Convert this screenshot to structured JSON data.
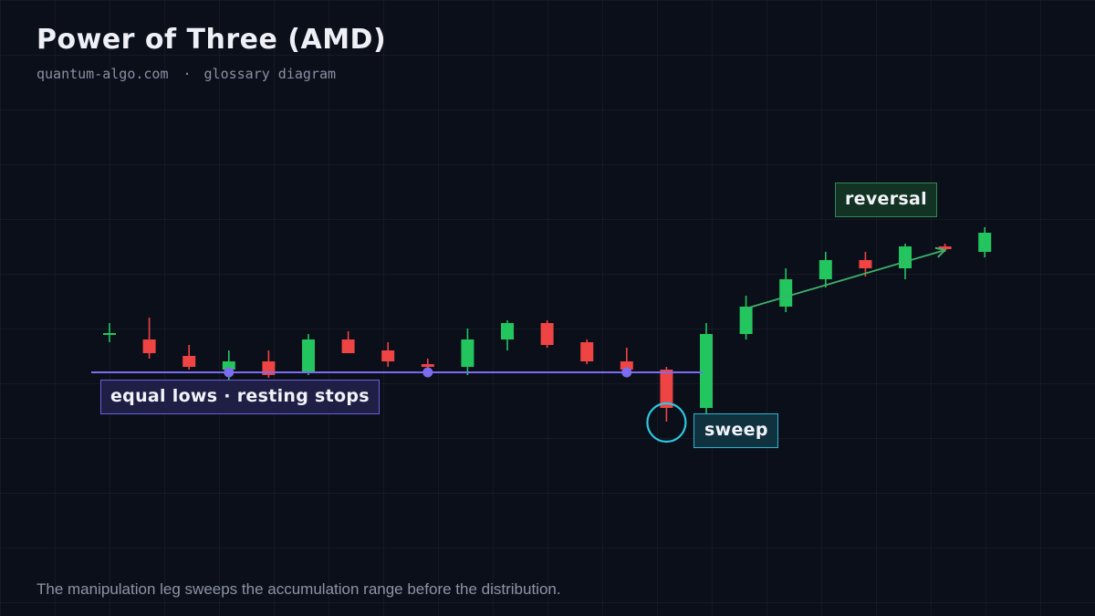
{
  "header": {
    "title": "Power of Three (AMD)",
    "site": "quantum-algo.com",
    "separator": "·",
    "tag": "glossary diagram"
  },
  "annotations": {
    "equal_lows": "equal lows · resting stops",
    "sweep": "sweep",
    "reversal": "reversal"
  },
  "caption": "The manipulation leg sweeps the accumulation range before the distribution.",
  "colors": {
    "background": "#0b0f1a",
    "bull": "#22c55e",
    "bear": "#ef4444",
    "equal_lows_line": "#7c6cf0",
    "sweep_ring": "#2cc8e0",
    "reversal_arrow": "#3fb26a"
  },
  "chart_data": {
    "type": "candlestick",
    "candles": [
      {
        "open": 79.0,
        "high": 81.0,
        "low": 77.5,
        "close": 79.0
      },
      {
        "open": 78.0,
        "high": 82.0,
        "low": 74.5,
        "close": 75.5
      },
      {
        "open": 75.0,
        "high": 77.0,
        "low": 72.5,
        "close": 73.0
      },
      {
        "open": 72.5,
        "high": 76.0,
        "low": 70.5,
        "close": 74.0
      },
      {
        "open": 74.0,
        "high": 76.0,
        "low": 71.0,
        "close": 71.5
      },
      {
        "open": 72.0,
        "high": 79.0,
        "low": 71.5,
        "close": 78.0
      },
      {
        "open": 78.0,
        "high": 79.5,
        "low": 75.5,
        "close": 75.5
      },
      {
        "open": 76.0,
        "high": 77.5,
        "low": 73.0,
        "close": 74.0
      },
      {
        "open": 73.5,
        "high": 74.5,
        "low": 72.5,
        "close": 73.0
      },
      {
        "open": 73.0,
        "high": 80.0,
        "low": 71.5,
        "close": 78.0
      },
      {
        "open": 78.0,
        "high": 81.5,
        "low": 76.0,
        "close": 81.0
      },
      {
        "open": 81.0,
        "high": 81.5,
        "low": 76.5,
        "close": 77.0
      },
      {
        "open": 77.5,
        "high": 78.0,
        "low": 73.5,
        "close": 74.0
      },
      {
        "open": 74.0,
        "high": 76.5,
        "low": 72.0,
        "close": 72.5
      },
      {
        "open": 72.5,
        "high": 73.0,
        "low": 63.0,
        "close": 65.5
      },
      {
        "open": 65.5,
        "high": 81.0,
        "low": 64.5,
        "close": 79.0
      },
      {
        "open": 79.0,
        "high": 86.0,
        "low": 78.0,
        "close": 84.0
      },
      {
        "open": 84.0,
        "high": 91.0,
        "low": 83.0,
        "close": 89.0
      },
      {
        "open": 89.0,
        "high": 94.0,
        "low": 87.5,
        "close": 92.5
      },
      {
        "open": 92.5,
        "high": 94.0,
        "low": 89.5,
        "close": 91.0
      },
      {
        "open": 91.0,
        "high": 95.5,
        "low": 89.0,
        "close": 95.0
      },
      {
        "open": 95.0,
        "high": 95.5,
        "low": 94.0,
        "close": 94.5
      },
      {
        "open": 94.0,
        "high": 98.5,
        "low": 93.0,
        "close": 97.5
      }
    ],
    "equal_lows": {
      "level": 72.0,
      "touch_candles": [
        3,
        8,
        13
      ]
    },
    "sweep_candle": 14,
    "reversal_arrow": {
      "from_candle": 16,
      "to_candle": 21
    },
    "grid": true,
    "ylim": [
      45,
      125
    ]
  }
}
